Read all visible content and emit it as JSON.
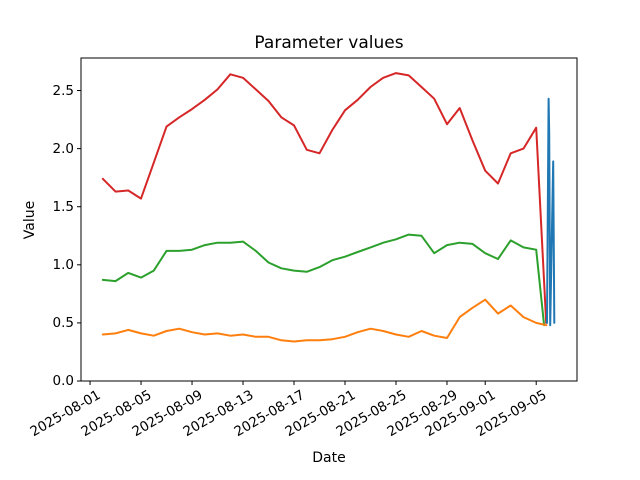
{
  "figure": {
    "title": "Parameter values",
    "xlabel": "Date",
    "ylabel": "Value",
    "background_color": "#ffffff",
    "spine_color": "#000000"
  },
  "chart_data": {
    "type": "line",
    "title": "Parameter values",
    "xlabel": "Date",
    "ylabel": "Value",
    "grid": false,
    "legend": null,
    "x_unit": "days since 2025-08-01",
    "xlim": [
      -0.71,
      38.2
    ],
    "ylim": [
      0,
      2.78
    ],
    "x_ticks": [
      0,
      4,
      8,
      12,
      16,
      20,
      24,
      28,
      31,
      35
    ],
    "x_tick_labels": [
      "2025-08-01",
      "2025-08-05",
      "2025-08-09",
      "2025-08-13",
      "2025-08-17",
      "2025-08-21",
      "2025-08-25",
      "2025-08-29",
      "2025-09-01",
      "2025-09-05"
    ],
    "y_ticks": [
      0.0,
      0.5,
      1.0,
      1.5,
      2.0,
      2.5
    ],
    "y_tick_labels": [
      "0.0",
      "0.5",
      "1.0",
      "1.5",
      "2.0",
      "2.5"
    ],
    "series": [
      {
        "name": "red-line",
        "color": "#d62728",
        "x": [
          1,
          2,
          3,
          4,
          5,
          6,
          7,
          8,
          9,
          10,
          11,
          12,
          13,
          14,
          15,
          16,
          17,
          18,
          19,
          20,
          21,
          22,
          23,
          24,
          25,
          26,
          27,
          28,
          29,
          30,
          31,
          32,
          33,
          34,
          35,
          35.78
        ],
        "y": [
          1.74,
          1.63,
          1.64,
          1.57,
          1.88,
          2.19,
          2.27,
          2.34,
          2.42,
          2.51,
          2.64,
          2.61,
          2.51,
          2.41,
          2.27,
          2.2,
          1.99,
          1.96,
          2.16,
          2.33,
          2.42,
          2.53,
          2.61,
          2.65,
          2.63,
          2.53,
          2.43,
          2.21,
          2.35,
          2.07,
          1.81,
          1.7,
          1.96,
          2.0,
          2.18,
          0.5
        ]
      },
      {
        "name": "green-line",
        "color": "#2ca02c",
        "x": [
          1,
          2,
          3,
          4,
          5,
          6,
          7,
          8,
          9,
          10,
          11,
          12,
          13,
          14,
          15,
          16,
          17,
          18,
          19,
          20,
          21,
          22,
          23,
          24,
          25,
          26,
          27,
          28,
          29,
          30,
          31,
          32,
          33,
          34,
          35,
          35.62
        ],
        "y": [
          0.87,
          0.86,
          0.93,
          0.89,
          0.95,
          1.12,
          1.12,
          1.13,
          1.17,
          1.19,
          1.19,
          1.2,
          1.12,
          1.02,
          0.97,
          0.95,
          0.94,
          0.98,
          1.04,
          1.07,
          1.11,
          1.15,
          1.19,
          1.22,
          1.26,
          1.25,
          1.1,
          1.17,
          1.19,
          1.18,
          1.1,
          1.05,
          1.21,
          1.15,
          1.13,
          0.48
        ]
      },
      {
        "name": "orange-line",
        "color": "#ff7f0e",
        "x": [
          1,
          2,
          3,
          4,
          5,
          6,
          7,
          8,
          9,
          10,
          11,
          12,
          13,
          14,
          15,
          16,
          17,
          18,
          19,
          20,
          21,
          22,
          23,
          24,
          25,
          26,
          27,
          28,
          29,
          30,
          31,
          32,
          33,
          34,
          35,
          35.8
        ],
        "y": [
          0.4,
          0.41,
          0.44,
          0.41,
          0.39,
          0.43,
          0.45,
          0.42,
          0.4,
          0.41,
          0.39,
          0.4,
          0.38,
          0.38,
          0.35,
          0.34,
          0.35,
          0.35,
          0.36,
          0.38,
          0.42,
          0.45,
          0.43,
          0.4,
          0.38,
          0.43,
          0.39,
          0.37,
          0.55,
          0.63,
          0.7,
          0.58,
          0.65,
          0.55,
          0.5,
          0.48
        ]
      },
      {
        "name": "blue-line",
        "color": "#1f77b4",
        "x": [
          35.85,
          35.97,
          36.02,
          36.1,
          36.33,
          36.42
        ],
        "y": [
          0.5,
          2.43,
          2.13,
          0.48,
          1.89,
          0.5
        ]
      }
    ]
  }
}
